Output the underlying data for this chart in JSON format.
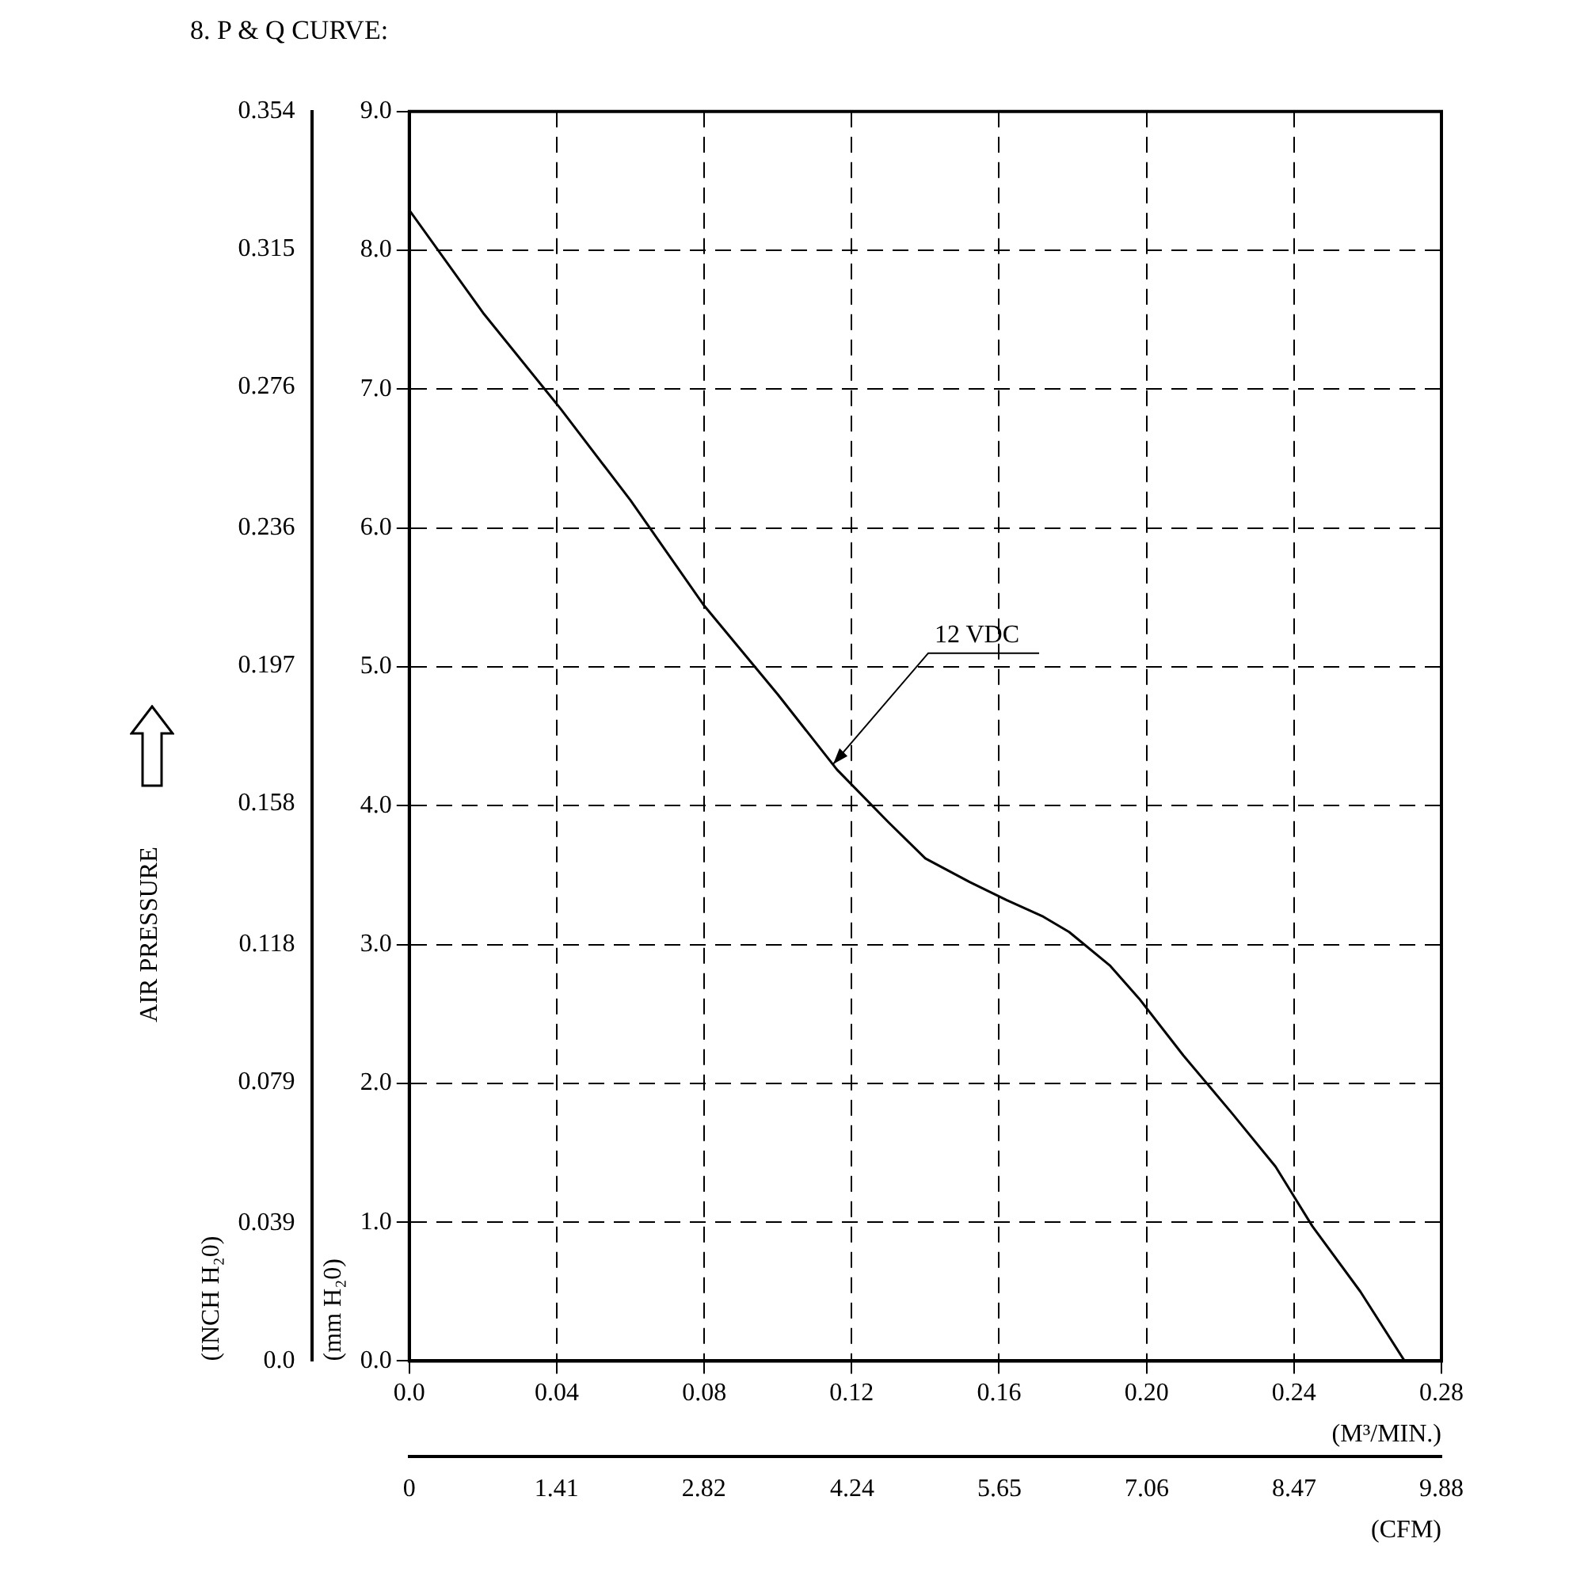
{
  "chart_data": {
    "type": "line",
    "title": "8. P & Q CURVE:",
    "xlabel": "(M³/MIN.)",
    "x2label": "(CFM)",
    "ylabel": "(mm H₂0)",
    "y2label": "(INCH H₂0)",
    "annotations": [
      "AIR PRESSURE",
      {
        "text": "12 VDC",
        "x": 0.115,
        "y": 4.3
      }
    ],
    "x": [
      0,
      0.02,
      0.041,
      0.06,
      0.08,
      0.1,
      0.116,
      0.13,
      0.14,
      0.152,
      0.162,
      0.172,
      0.179,
      0.19,
      0.198,
      0.21,
      0.223,
      0.235,
      0.245,
      0.258,
      0.27
    ],
    "series": [
      {
        "color": "#000000",
        "values": [
          8.29,
          7.55,
          6.86,
          6.2,
          5.44,
          4.8,
          4.26,
          3.88,
          3.62,
          3.45,
          3.32,
          3.2,
          3.09,
          2.85,
          2.61,
          2.2,
          1.79,
          1.4,
          0.97,
          0.5,
          0
        ]
      }
    ],
    "xlim": [
      0,
      0.28
    ],
    "xticks": [
      {
        "value": 0,
        "label": "0.0"
      },
      0.04,
      0.08,
      0.12,
      0.16,
      {
        "value": 0.2,
        "label": "0.20"
      },
      0.24,
      0.28
    ],
    "x2lim": [
      0,
      9.88
    ],
    "x2ticks": [
      0,
      1.41,
      2.82,
      4.24,
      5.65,
      7.06,
      8.47,
      9.88
    ],
    "ylim": [
      0,
      9
    ],
    "yticks": [
      {
        "value": 0,
        "label": "0.0"
      },
      {
        "value": 1,
        "label": "1.0"
      },
      {
        "value": 2,
        "label": "2.0"
      },
      {
        "value": 3,
        "label": "3.0"
      },
      {
        "value": 4,
        "label": "4.0"
      },
      {
        "value": 5,
        "label": "5.0"
      },
      {
        "value": 6,
        "label": "6.0"
      },
      {
        "value": 7,
        "label": "7.0"
      },
      {
        "value": 8,
        "label": "8.0"
      },
      {
        "value": 9,
        "label": "9.0"
      }
    ],
    "y2lim": [
      0,
      0.354
    ],
    "y2ticks": [
      {
        "value": 0,
        "label": "0.0"
      },
      0.039,
      0.079,
      0.118,
      0.158,
      0.197,
      0.236,
      0.276,
      0.315,
      0.354
    ],
    "grid": true,
    "marker": "none",
    "line_style": "solid"
  }
}
